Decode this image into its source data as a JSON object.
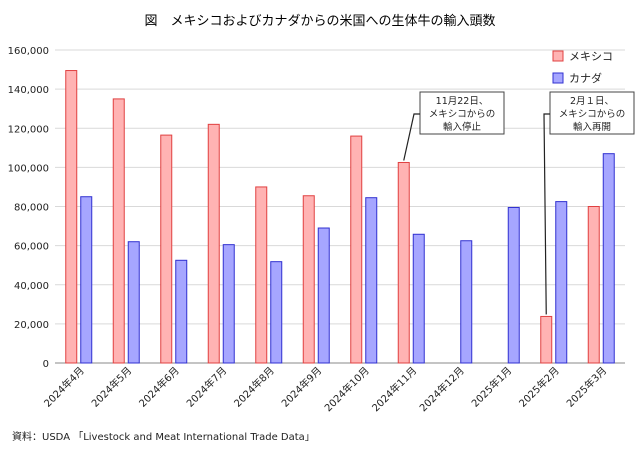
{
  "chart_data": {
    "type": "bar",
    "title": "図　メキシコおよびカナダからの米国への生体牛の輸入頭数",
    "categories": [
      "2024年4月",
      "2024年5月",
      "2024年6月",
      "2024年7月",
      "2024年8月",
      "2024年9月",
      "2024年10月",
      "2024年11月",
      "2024年12月",
      "2025年1月",
      "2025年2月",
      "2025年3月"
    ],
    "series": [
      {
        "name": "メキシコ",
        "color": "#ffb3b3",
        "stroke": "#e04040",
        "values": [
          149500,
          135000,
          116500,
          122000,
          90000,
          85500,
          116000,
          102500,
          null,
          null,
          23800,
          80000
        ]
      },
      {
        "name": "カナダ",
        "color": "#a6a6ff",
        "stroke": "#3030d0",
        "values": [
          85000,
          62000,
          52500,
          60500,
          51800,
          69000,
          84500,
          65800,
          62500,
          79500,
          82500,
          107000
        ]
      }
    ],
    "ylim": [
      0,
      160000
    ],
    "yticks": [
      "0",
      "20,000",
      "40,000",
      "60,000",
      "80,000",
      "100,000",
      "120,000",
      "140,000",
      "160,000"
    ],
    "legend_position": "top-right",
    "annotations": [
      {
        "text_lines": [
          "11月22日、",
          "メキシコからの",
          "輸入停止"
        ],
        "target_category": "2024年11月",
        "target_series": "メキシコ"
      },
      {
        "text_lines": [
          "2月１日、",
          "メキシコからの",
          "輸入再開"
        ],
        "target_category": "2025年2月",
        "target_series": "メキシコ"
      }
    ],
    "source": "資料：USDA 「Livestock and Meat International Trade Data」"
  }
}
